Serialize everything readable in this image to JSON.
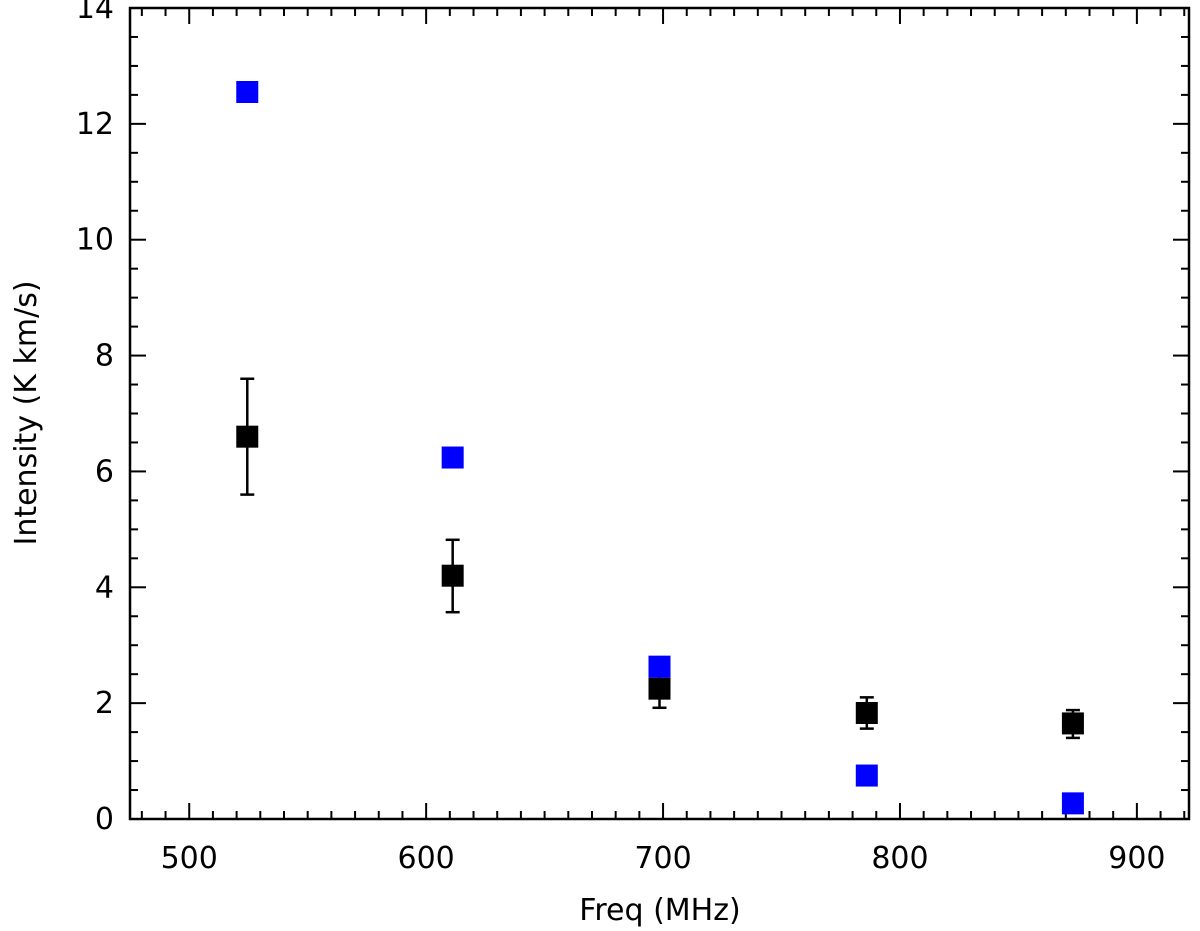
{
  "chart_data": {
    "type": "scatter",
    "title": "",
    "xlabel": "Freq (MHz)",
    "ylabel": "Intensity (K km/s)",
    "xlim": [
      475,
      922
    ],
    "ylim": [
      0,
      14
    ],
    "xticks": [
      500,
      600,
      700,
      800,
      900
    ],
    "yticks": [
      0,
      2,
      4,
      6,
      8,
      10,
      12,
      14
    ],
    "x_minor_step": 10,
    "y_minor_step": 0.5,
    "grid": false,
    "legend": "none",
    "series": [
      {
        "color": "#000000",
        "marker": "square",
        "points": [
          {
            "x": 524.5,
            "y": 6.6,
            "err_low": 5.6,
            "err_high": 7.6
          },
          {
            "x": 611.2,
            "y": 4.2,
            "err_low": 3.57,
            "err_high": 4.82
          },
          {
            "x": 698.5,
            "y": 2.25,
            "err_low": 1.92,
            "err_high": 2.58
          },
          {
            "x": 786.0,
            "y": 1.83,
            "err_low": 1.56,
            "err_high": 2.1
          },
          {
            "x": 873.0,
            "y": 1.65,
            "err_low": 1.4,
            "err_high": 1.88
          }
        ]
      },
      {
        "color": "#0000ff",
        "marker": "square",
        "points": [
          {
            "x": 524.5,
            "y": 12.55
          },
          {
            "x": 611.2,
            "y": 6.24
          },
          {
            "x": 698.5,
            "y": 2.63
          },
          {
            "x": 786.0,
            "y": 0.75
          },
          {
            "x": 873.0,
            "y": 0.27
          }
        ]
      }
    ]
  }
}
